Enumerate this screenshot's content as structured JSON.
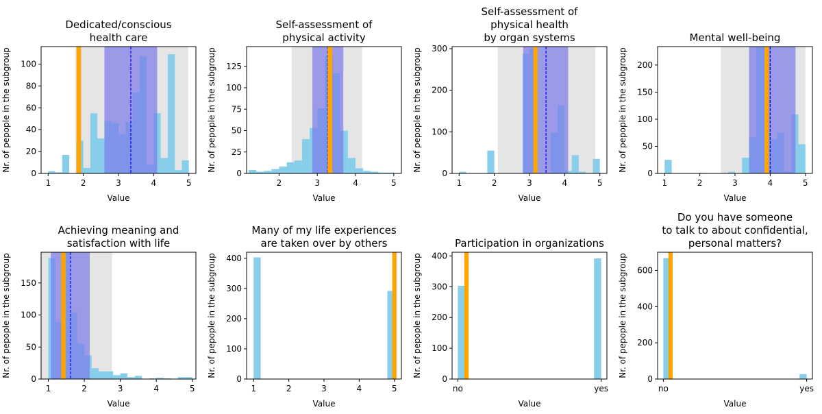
{
  "figure": {
    "colors": {
      "bars": "#87CEEB",
      "overlap_bars": "#4A77E0",
      "std_band": "#7B7BEA",
      "range_band": "#D3D3D3",
      "person_marker": "#FFA500",
      "mean_line": "#0000EE"
    }
  },
  "chart_data": [
    {
      "type": "bar",
      "title": "Dedicated/conscious\nhealth care",
      "xlabel": "Value",
      "ylabel": "Nr. of pepople in the subgroup",
      "xlim": [
        0.8,
        5.2
      ],
      "ylim": [
        0,
        116
      ],
      "xticks": [
        {
          "v": 1,
          "label": "1"
        },
        {
          "v": 2,
          "label": "2"
        },
        {
          "v": 3,
          "label": "3"
        },
        {
          "v": 4,
          "label": "4"
        },
        {
          "v": 5,
          "label": "5"
        }
      ],
      "yticks": [
        0,
        20,
        40,
        60,
        80,
        100
      ],
      "bin_edges": [
        1,
        1.2,
        1.4,
        1.6,
        1.8,
        2,
        2.2,
        2.4,
        2.6,
        2.8,
        3,
        3.2,
        3.4,
        3.6,
        3.8,
        4,
        4.2,
        4.4,
        4.6,
        4.8,
        5
      ],
      "counts": [
        2,
        1,
        17,
        0,
        30,
        5,
        55,
        32,
        48,
        46,
        36,
        47,
        74,
        107,
        8,
        55,
        14,
        109,
        3,
        12
      ],
      "range_band": [
        1.78,
        4.98
      ],
      "std_band": [
        2.6,
        4.1
      ],
      "mean": 3.35,
      "person_value": 1.87,
      "person_width": 0.13
    },
    {
      "type": "bar",
      "title": "Self-assessment of\nphysical activity",
      "xlabel": "Value",
      "ylabel": "Nr. of pepople in the subgroup",
      "xlim": [
        1.15,
        5.2
      ],
      "ylim": [
        0,
        148
      ],
      "xticks": [
        {
          "v": 2,
          "label": "2"
        },
        {
          "v": 3,
          "label": "3"
        },
        {
          "v": 4,
          "label": "4"
        },
        {
          "v": 5,
          "label": "5"
        }
      ],
      "yticks": [
        0,
        25,
        50,
        75,
        100,
        125
      ],
      "bin_edges": [
        1.2,
        1.4,
        1.6,
        1.8,
        2,
        2.2,
        2.4,
        2.6,
        2.8,
        3,
        3.2,
        3.4,
        3.6,
        3.8,
        4,
        4.2,
        4.4,
        4.6,
        4.8,
        5
      ],
      "counts": [
        4,
        2,
        3,
        5,
        8,
        13,
        15,
        40,
        53,
        76,
        137,
        117,
        50,
        18,
        6,
        3,
        2,
        1,
        1
      ],
      "range_band": [
        2.33,
        4.17
      ],
      "std_band": [
        2.87,
        3.68
      ],
      "mean": 3.27,
      "person_value": 3.33,
      "person_width": 0.12
    },
    {
      "type": "bar",
      "title": "Self-assessment of\nphysical health\nby organ systems",
      "xlabel": "Value",
      "ylabel": "Nr. of pepople in the subgroup",
      "xlim": [
        0.8,
        5.2
      ],
      "ylim": [
        0,
        305
      ],
      "xticks": [
        {
          "v": 1,
          "label": "1"
        },
        {
          "v": 2,
          "label": "2"
        },
        {
          "v": 3,
          "label": "3"
        },
        {
          "v": 4,
          "label": "4"
        },
        {
          "v": 5,
          "label": "5"
        }
      ],
      "yticks": [
        0,
        100,
        200,
        300
      ],
      "bin_edges": [
        1,
        1.2,
        1.4,
        1.6,
        1.8,
        2,
        2.2,
        2.4,
        2.6,
        2.8,
        3,
        3.2,
        3.4,
        3.6,
        3.8,
        4,
        4.2,
        4.4,
        4.6,
        4.8,
        5
      ],
      "counts": [
        4,
        0,
        0,
        0,
        55,
        0,
        0,
        0,
        0,
        288,
        300,
        0,
        0,
        98,
        164,
        6,
        44,
        4,
        0,
        35
      ],
      "range_band": [
        2.1,
        4.87
      ],
      "std_band": [
        2.82,
        4.1
      ],
      "mean": 3.47,
      "person_value": 3.17,
      "person_width": 0.12
    },
    {
      "type": "bar",
      "title": "Mental well-being",
      "xlabel": "Value",
      "ylabel": "Nr. of pepople in the subgroup",
      "xlim": [
        0.8,
        5.2
      ],
      "ylim": [
        0,
        234
      ],
      "xticks": [
        {
          "v": 1,
          "label": "1"
        },
        {
          "v": 2,
          "label": "2"
        },
        {
          "v": 3,
          "label": "3"
        },
        {
          "v": 4,
          "label": "4"
        },
        {
          "v": 5,
          "label": "5"
        }
      ],
      "yticks": [
        0,
        50,
        100,
        150,
        200
      ],
      "bin_edges": [
        1,
        1.2,
        1.4,
        1.6,
        1.8,
        2,
        2.2,
        2.4,
        2.6,
        2.8,
        3,
        3.2,
        3.4,
        3.6,
        3.8,
        4,
        4.2,
        4.4,
        4.6,
        4.8,
        5
      ],
      "counts": [
        25,
        0,
        0,
        0,
        0,
        1,
        0,
        0,
        0,
        3,
        0,
        29,
        67,
        234,
        234,
        63,
        75,
        4,
        109,
        54
      ],
      "range_band": [
        2.6,
        5.0
      ],
      "std_band": [
        3.4,
        4.72
      ],
      "mean": 4.0,
      "person_value": 3.9,
      "person_width": 0.12
    },
    {
      "type": "bar",
      "title": "Achieving meaning and\nsatisfaction with life",
      "xlabel": "Value",
      "ylabel": "Nr. of pepople in the subgroup",
      "xlim": [
        0.8,
        5.1
      ],
      "ylim": [
        0,
        198
      ],
      "xticks": [
        {
          "v": 1,
          "label": "1"
        },
        {
          "v": 2,
          "label": "2"
        },
        {
          "v": 3,
          "label": "3"
        },
        {
          "v": 4,
          "label": "4"
        },
        {
          "v": 5,
          "label": "5"
        }
      ],
      "yticks": [
        0,
        50,
        100,
        150
      ],
      "bin_edges": [
        1,
        1.2,
        1.4,
        1.6,
        1.8,
        2,
        2.2,
        2.4,
        2.6,
        2.8,
        3,
        3.2,
        3.4,
        3.6,
        3.8,
        4,
        4.2,
        4.4,
        4.6,
        4.8,
        5
      ],
      "counts": [
        189,
        89,
        198,
        104,
        55,
        37,
        17,
        12,
        12,
        6,
        9,
        3,
        5,
        0,
        1,
        2,
        1,
        0,
        3,
        3
      ],
      "range_band": [
        0.8,
        2.77
      ],
      "std_band": [
        1.07,
        2.15
      ],
      "mean": 1.62,
      "person_value": 1.42,
      "person_width": 0.12
    },
    {
      "type": "bar",
      "title": "Many of my life experiences\nare taken over by others",
      "xlabel": "Value",
      "ylabel": "Nr. of pepople in the subgroup",
      "xlim": [
        0.8,
        5.2
      ],
      "ylim": [
        0,
        420
      ],
      "xticks": [
        {
          "v": 1,
          "label": "1"
        },
        {
          "v": 2,
          "label": "2"
        },
        {
          "v": 3,
          "label": "3"
        },
        {
          "v": 4,
          "label": "4"
        },
        {
          "v": 5,
          "label": "5"
        }
      ],
      "yticks": [
        0,
        100,
        200,
        300,
        400
      ],
      "bin_edges": [
        1,
        1.2,
        1.4,
        1.6,
        1.8,
        2,
        2.2,
        2.4,
        2.6,
        2.8,
        3,
        3.2,
        3.4,
        3.6,
        3.8,
        4,
        4.2,
        4.4,
        4.6,
        4.8,
        5
      ],
      "counts": [
        403,
        0,
        0,
        0,
        0,
        0,
        0,
        0,
        0,
        0,
        0,
        0,
        0,
        0,
        0,
        0,
        0,
        0,
        0,
        292
      ],
      "range_band": null,
      "std_band": null,
      "mean": null,
      "person_value": 5.0,
      "person_width": 0.12
    },
    {
      "type": "bar",
      "title": "Participation in organizations",
      "xlabel": "Value",
      "ylabel": "Nr. of pepople in the subgroup",
      "xlim": [
        -0.04,
        1.04
      ],
      "ylim": [
        0,
        412
      ],
      "xticks": [
        {
          "v": 0,
          "label": "no"
        },
        {
          "v": 1,
          "label": "yes"
        }
      ],
      "yticks": [
        0,
        100,
        200,
        300,
        400
      ],
      "bin_edges": [
        0,
        0.05,
        0.1,
        0.15,
        0.2,
        0.25,
        0.3,
        0.35,
        0.4,
        0.45,
        0.5,
        0.55,
        0.6,
        0.65,
        0.7,
        0.75,
        0.8,
        0.85,
        0.9,
        0.95,
        1
      ],
      "counts": [
        303,
        0,
        0,
        0,
        0,
        0,
        0,
        0,
        0,
        0,
        0,
        0,
        0,
        0,
        0,
        0,
        0,
        0,
        0,
        392
      ],
      "range_band": null,
      "std_band": null,
      "mean": null,
      "person_value": 0.06,
      "person_width": 0.03
    },
    {
      "type": "bar",
      "title": "Do you have someone\nto talk to about confidential,\npersonal matters?",
      "xlabel": "Value",
      "ylabel": "Nr. of pepople in the subgroup",
      "xlim": [
        -0.04,
        1.04
      ],
      "ylim": [
        0,
        700
      ],
      "xticks": [
        {
          "v": 0,
          "label": "no"
        },
        {
          "v": 1,
          "label": "yes"
        }
      ],
      "yticks": [
        0,
        200,
        400,
        600
      ],
      "bin_edges": [
        0,
        0.05,
        0.1,
        0.15,
        0.2,
        0.25,
        0.3,
        0.35,
        0.4,
        0.45,
        0.5,
        0.55,
        0.6,
        0.65,
        0.7,
        0.75,
        0.8,
        0.85,
        0.9,
        0.95,
        1
      ],
      "counts": [
        668,
        0,
        0,
        0,
        0,
        0,
        0,
        0,
        0,
        0,
        0,
        0,
        0,
        0,
        0,
        0,
        0,
        0,
        0,
        27
      ],
      "range_band": null,
      "std_band": null,
      "mean": null,
      "person_value": 0.05,
      "person_width": 0.03
    }
  ]
}
